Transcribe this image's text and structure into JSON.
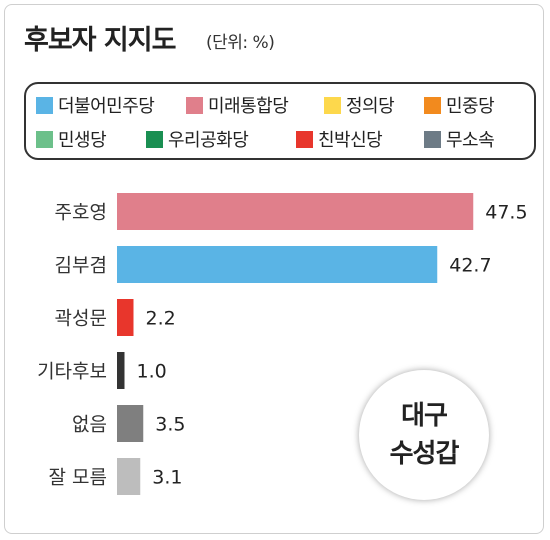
{
  "title": "후보자 지지도",
  "unit": "(단위: %)",
  "legend": [
    {
      "label": "더불어민주당",
      "color": "#5ab4e5"
    },
    {
      "label": "미래통합당",
      "color": "#e07f8b"
    },
    {
      "label": "정의당",
      "color": "#fdd84c"
    },
    {
      "label": "민중당",
      "color": "#f28a1e"
    },
    {
      "label": "민생당",
      "color": "#6cc08a"
    },
    {
      "label": "우리공화당",
      "color": "#1a8f52"
    },
    {
      "label": "친박신당",
      "color": "#e8362c"
    },
    {
      "label": "무소속",
      "color": "#6d7b86"
    }
  ],
  "badge": {
    "line1": "대구",
    "line2": "수성갑"
  },
  "chart_data": {
    "type": "bar",
    "orientation": "horizontal",
    "unit": "%",
    "categories": [
      "주호영",
      "김부겸",
      "곽성문",
      "기타후보",
      "없음",
      "잘 모름"
    ],
    "values": [
      47.5,
      42.7,
      2.2,
      1.0,
      3.5,
      3.1
    ],
    "value_labels": [
      "47.5",
      "42.7",
      "2.2",
      "1.0",
      "3.5",
      "3.1"
    ],
    "colors": [
      "#e07f8b",
      "#5ab4e5",
      "#e8362c",
      "#333333",
      "#7f7f7f",
      "#bdbdbd"
    ]
  }
}
